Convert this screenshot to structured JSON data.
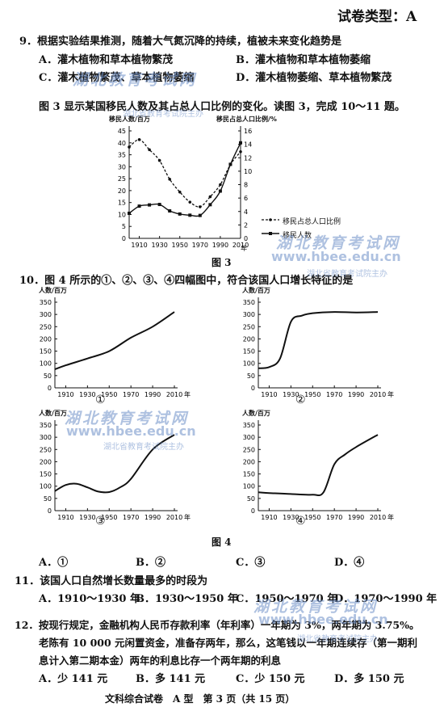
{
  "paper_type": "试卷类型：A",
  "q9": {
    "stem": "9．根据实验结果推测，随着大气氮沉降的持续，植被未来变化趋势是",
    "options": [
      "A．灌木植物和草本植物繁茂",
      "B．灌木植物和草本植物萎缩",
      "C．灌木植物繁茂、草本植物萎缩",
      "D．灌木植物萎缩、草本植物繁茂"
    ]
  },
  "intro": "图 3 显示某国移民人数及其占总人口比例的变化。读图 3，完成 10～11 题。",
  "fig3": {
    "caption": "图 3",
    "ylabel_left": "移民人数/百万",
    "ylabel_right": "移民占总人口比例/%",
    "x_suffix": "年",
    "legend_ratio": "移民占总人口比例",
    "legend_count": "移民人数"
  },
  "q10": {
    "stem": "10．图 4 所示的①、②、③、④四幅图中，符合该国人口增长特征的是",
    "ylabel": "人数/百万",
    "panel_labels": [
      "①",
      "②",
      "③",
      "④"
    ],
    "caption": "图 4",
    "options": [
      "A．①",
      "B．②",
      "C．③",
      "D．④"
    ]
  },
  "q11": {
    "stem": "11．该国人口自然增长数量最多的时段为",
    "options": [
      "A．1910～1930 年",
      "B．1930～1950 年",
      "C．1950～1970 年",
      "D．1970～1990 年"
    ]
  },
  "q12": {
    "line1": "12．按现行规定，金融机构人民币存款利率（年利率）一年期为 3%，两年期为 3.75%。",
    "line2": "老陈有 10 000 元闲置资金，准备存两年，那么，这笔钱以一年期连续存（第一期利",
    "line3": "息计入第二期本金）两年的利息比存一个两年期的利息",
    "options": [
      "A．少 141 元",
      "B．多 141 元",
      "C．少 150 元",
      "D．多 150 元"
    ]
  },
  "footer": "文科综合试卷　A 型　第 3 页（共 15 页）",
  "watermark": {
    "name": "湖北教育考试网",
    "url": "www.hbee.edu.cn",
    "org": "湖北省教育考试院主办"
  },
  "chart_data": [
    {
      "type": "line",
      "x": [
        1900,
        1910,
        1920,
        1930,
        1940,
        1950,
        1960,
        1970,
        1980,
        1990,
        2000,
        2010
      ],
      "xticks": [
        1910,
        1930,
        1950,
        1970,
        1990,
        2010
      ],
      "y_left_ticks": [
        0,
        5,
        10,
        15,
        20,
        25,
        30,
        35,
        40,
        45
      ],
      "y_right_ticks": [
        0,
        2,
        4,
        6,
        8,
        10,
        12,
        14,
        16
      ],
      "ylim_left": [
        0,
        45
      ],
      "ylim_right": [
        0,
        16
      ],
      "series": [
        {
          "name": "移民占总人口比例",
          "axis": "right",
          "style": "dashed",
          "values": [
            13.6,
            14.7,
            13.2,
            11.6,
            8.8,
            6.9,
            5.4,
            4.7,
            6.2,
            8.0,
            11.0,
            12.9
          ]
        },
        {
          "name": "移民人数",
          "axis": "left",
          "style": "solid",
          "values": [
            10.5,
            13.5,
            14,
            14.2,
            11.5,
            10.2,
            9.7,
            9.6,
            14.1,
            19.8,
            31,
            40
          ]
        }
      ]
    },
    {
      "type": "line",
      "panel": "①",
      "x": [
        1900,
        1910,
        1930,
        1950,
        1970,
        1990,
        2010
      ],
      "xticks": [
        1910,
        1930,
        1950,
        1970,
        1990,
        2010
      ],
      "yticks": [
        0,
        50,
        100,
        150,
        200,
        250,
        300,
        350
      ],
      "ylim": [
        0,
        350
      ],
      "values": [
        76,
        92,
        120,
        150,
        205,
        250,
        310
      ]
    },
    {
      "type": "line",
      "panel": "②",
      "x": [
        1900,
        1910,
        1920,
        1930,
        1940,
        1950,
        1970,
        1990,
        2010
      ],
      "xticks": [
        1910,
        1930,
        1950,
        1970,
        1990,
        2010
      ],
      "yticks": [
        0,
        50,
        100,
        150,
        200,
        250,
        300,
        350
      ],
      "ylim": [
        0,
        350
      ],
      "values": [
        80,
        85,
        120,
        270,
        295,
        305,
        310,
        308,
        310
      ]
    },
    {
      "type": "line",
      "panel": "③",
      "x": [
        1900,
        1910,
        1920,
        1930,
        1940,
        1950,
        1960,
        1970,
        1990,
        2010
      ],
      "xticks": [
        1910,
        1930,
        1950,
        1970,
        1990,
        2010
      ],
      "yticks": [
        0,
        50,
        100,
        150,
        200,
        250,
        300,
        350
      ],
      "ylim": [
        0,
        350
      ],
      "values": [
        80,
        105,
        110,
        95,
        78,
        76,
        95,
        130,
        250,
        310
      ]
    },
    {
      "type": "line",
      "panel": "④",
      "x": [
        1900,
        1910,
        1930,
        1950,
        1960,
        1970,
        1980,
        1990,
        2010
      ],
      "xticks": [
        1910,
        1930,
        1950,
        1970,
        1990,
        2010
      ],
      "yticks": [
        0,
        50,
        100,
        150,
        200,
        250,
        300,
        350
      ],
      "ylim": [
        0,
        350
      ],
      "values": [
        75,
        72,
        68,
        65,
        75,
        190,
        230,
        260,
        310
      ]
    }
  ]
}
